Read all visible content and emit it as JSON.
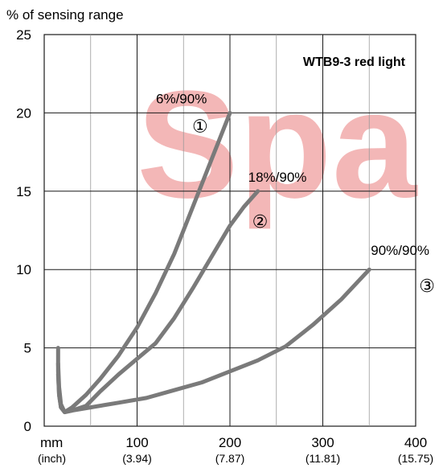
{
  "chart_data": {
    "type": "line",
    "title": "WTB9-3 red light",
    "ylabel": "% of sensing range",
    "xlabel": "mm",
    "xlabel_secondary": "(inch)",
    "xlim": [
      0,
      400
    ],
    "ylim": [
      0,
      25
    ],
    "x_ticks": [
      100,
      200,
      300,
      400
    ],
    "x_ticks_inch": [
      "(3.94)",
      "(7.87)",
      "(11.81)",
      "(15.75)"
    ],
    "y_ticks": [
      0,
      5,
      10,
      15,
      20,
      25
    ],
    "grid": true,
    "watermark": "Spa",
    "series": [
      {
        "name": "6%/90%",
        "marker": "①",
        "x": [
          15,
          15,
          16,
          18,
          22,
          30,
          45,
          60,
          80,
          100,
          120,
          140,
          160,
          180,
          200
        ],
        "y": [
          5,
          3.5,
          2,
          1.2,
          0.9,
          1.2,
          2,
          3,
          4.5,
          6.3,
          8.5,
          11,
          14,
          17,
          20
        ]
      },
      {
        "name": "18%/90%",
        "marker": "②",
        "x": [
          15,
          16,
          18,
          22,
          30,
          45,
          60,
          80,
          100,
          120,
          140,
          160,
          180,
          200,
          215,
          230
        ],
        "y": [
          4,
          2.5,
          1.4,
          0.9,
          1.0,
          1.3,
          2.2,
          3.3,
          4.3,
          5.3,
          6.9,
          8.8,
          10.8,
          12.8,
          14,
          15
        ]
      },
      {
        "name": "90%/90%",
        "marker": "③",
        "x": [
          15,
          16,
          18,
          22,
          30,
          50,
          80,
          110,
          140,
          170,
          200,
          230,
          260,
          290,
          320,
          350
        ],
        "y": [
          3.3,
          2,
          1.2,
          0.9,
          1.0,
          1.2,
          1.5,
          1.8,
          2.3,
          2.8,
          3.5,
          4.2,
          5.1,
          6.5,
          8.1,
          10
        ]
      }
    ]
  }
}
